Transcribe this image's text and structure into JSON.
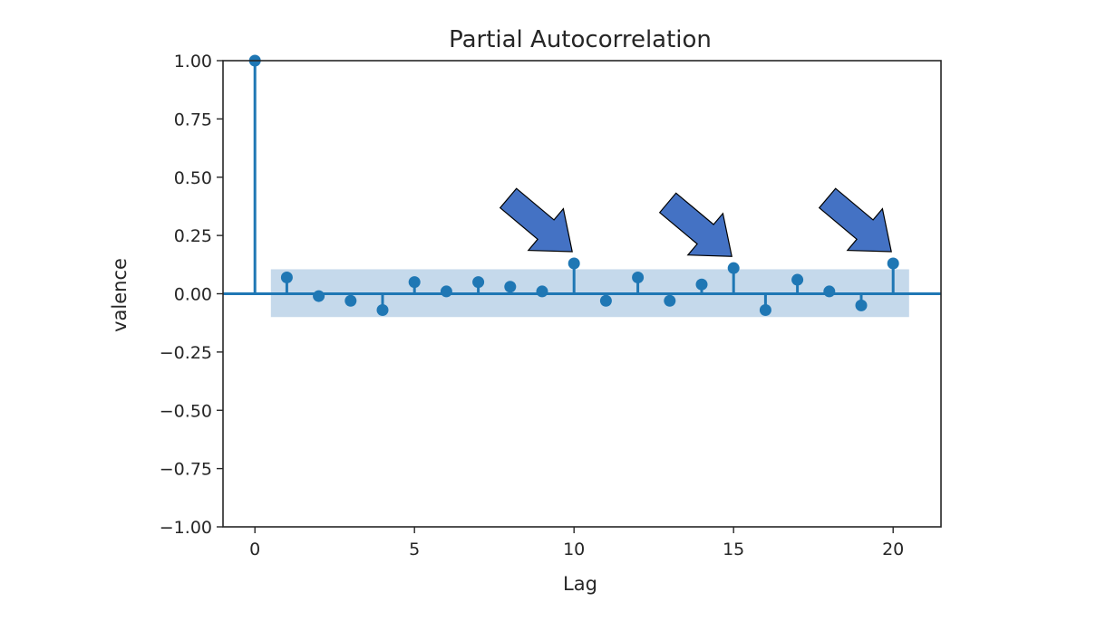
{
  "chart_data": {
    "type": "stem",
    "title": "Partial Autocorrelation",
    "xlabel": "Lag",
    "ylabel": "valence",
    "xlim": [
      -1,
      21.5
    ],
    "ylim": [
      -1.0,
      1.0
    ],
    "x_ticks": [
      0,
      5,
      10,
      15,
      20
    ],
    "x_tick_labels": [
      "0",
      "5",
      "10",
      "15",
      "20"
    ],
    "y_ticks": [
      1.0,
      0.75,
      0.5,
      0.25,
      0.0,
      -0.25,
      -0.5,
      -0.75,
      -1.0
    ],
    "y_tick_labels": [
      "1.00",
      "0.75",
      "0.50",
      "0.25",
      "0.00",
      "−0.25",
      "−0.50",
      "−0.75",
      "−1.00"
    ],
    "lags": [
      0,
      1,
      2,
      3,
      4,
      5,
      6,
      7,
      8,
      9,
      10,
      11,
      12,
      13,
      14,
      15,
      16,
      17,
      18,
      19,
      20
    ],
    "values": [
      1.0,
      0.07,
      -0.01,
      -0.03,
      -0.07,
      0.05,
      0.01,
      0.05,
      0.03,
      0.01,
      0.13,
      -0.03,
      0.07,
      -0.03,
      0.04,
      0.11,
      -0.07,
      0.06,
      0.01,
      -0.05,
      0.13
    ],
    "confidence_band": {
      "lag_start": 0.5,
      "lag_end": 20.5,
      "upper": 0.105,
      "lower": -0.1
    },
    "highlighted_lags": [
      10,
      15,
      20
    ],
    "colors": {
      "series": "#1f77b4",
      "band": "#c5d9eb",
      "zero_line": "#1f77b4",
      "arrow_fill": "#4472c4",
      "arrow_stroke": "#000000"
    },
    "grid": false,
    "legend": "none"
  }
}
